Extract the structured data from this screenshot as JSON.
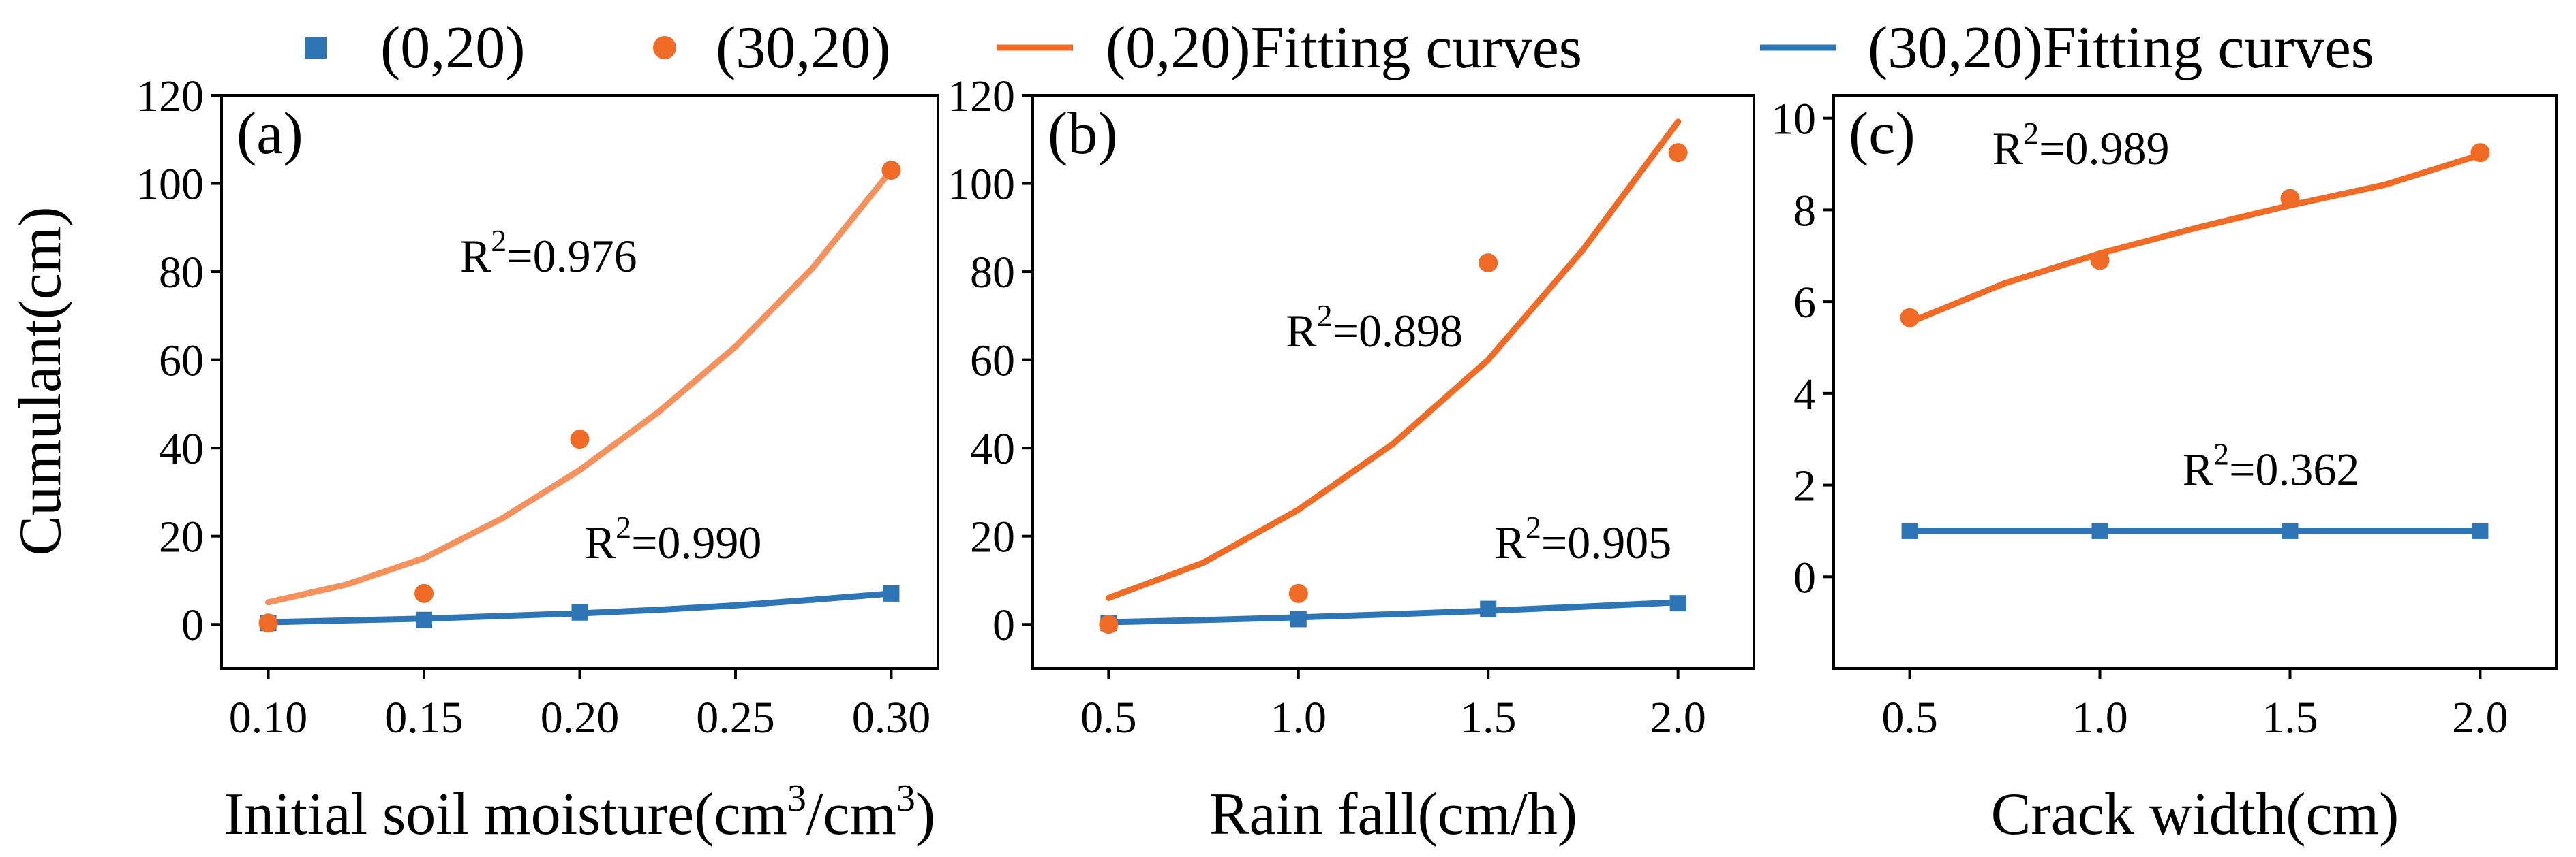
{
  "colors": {
    "series_0_20": "#2e75b6",
    "series_30_20": "#f06b25",
    "fit_0_20_panel_a": "#f5915c",
    "fit_0_20": "#f06b25",
    "fit_30_20": "#2e75b6"
  },
  "legend": {
    "placement": "top",
    "items": [
      {
        "label": "(0,20)",
        "marker": "square",
        "color": "#2e75b6"
      },
      {
        "label": "(30,20)",
        "marker": "circle",
        "color": "#f06b25"
      },
      {
        "label": "(0,20)Fitting curves",
        "marker": "line",
        "color": "#f06b25"
      },
      {
        "label": "(30,20)Fitting curves",
        "marker": "line",
        "color": "#2e75b6"
      }
    ]
  },
  "y_axis_label": "Cumulant(cm)",
  "chart_data": [
    {
      "type": "scatter",
      "panel_label": "(a)",
      "xlabel_parts": [
        "Initial soil moisture(cm",
        "3",
        "/cm",
        "3",
        ")"
      ],
      "xlim": [
        0.085,
        0.315
      ],
      "ylim": [
        -10,
        120
      ],
      "xticks": [
        0.1,
        0.15,
        0.2,
        0.25,
        0.3
      ],
      "xtick_labels": [
        "0.10",
        "0.15",
        "0.20",
        "0.25",
        "0.30"
      ],
      "yticks": [
        0,
        20,
        40,
        60,
        80,
        100,
        120
      ],
      "ytick_labels": [
        "0",
        "20",
        "40",
        "60",
        "80",
        "100",
        "120"
      ],
      "series": [
        {
          "name": "(0,20)",
          "marker": "square",
          "x": [
            0.1,
            0.15,
            0.2,
            0.3
          ],
          "y": [
            0.3,
            1.0,
            2.7,
            7.0
          ],
          "fit": {
            "x": [
              0.1,
              0.125,
              0.15,
              0.175,
              0.2,
              0.225,
              0.25,
              0.275,
              0.3
            ],
            "y": [
              0.5,
              0.9,
              1.3,
              1.9,
              2.5,
              3.3,
              4.3,
              5.6,
              7.0
            ]
          }
        },
        {
          "name": "(30,20)",
          "marker": "circle",
          "x": [
            0.1,
            0.15,
            0.2,
            0.3
          ],
          "y": [
            0.3,
            7.0,
            42.0,
            103.0
          ],
          "fit": {
            "x": [
              0.1,
              0.125,
              0.15,
              0.175,
              0.2,
              0.225,
              0.25,
              0.275,
              0.3
            ],
            "y": [
              5.0,
              9.0,
              15.0,
              24.0,
              35.0,
              48.0,
              63.0,
              81.0,
              103.0
            ]
          }
        }
      ],
      "annotations": [
        {
          "r2_prefix": "R",
          "r2_exp": "2",
          "r2_value": "=0.976",
          "x": 0.19,
          "y": 80
        },
        {
          "r2_prefix": "R",
          "r2_exp": "2",
          "r2_value": "=0.990",
          "x": 0.23,
          "y": 15
        }
      ]
    },
    {
      "type": "scatter",
      "panel_label": "(b)",
      "xlabel_parts": [
        "Rain fall(cm/h)"
      ],
      "xlim": [
        0.3,
        2.2
      ],
      "ylim": [
        -10,
        120
      ],
      "xticks": [
        0.5,
        1.0,
        1.5,
        2.0
      ],
      "xtick_labels": [
        "0.5",
        "1.0",
        "1.5",
        "2.0"
      ],
      "yticks": [
        0,
        20,
        40,
        60,
        80,
        100,
        120
      ],
      "ytick_labels": [
        "0",
        "20",
        "40",
        "60",
        "80",
        "100",
        "120"
      ],
      "series": [
        {
          "name": "(0,20)",
          "marker": "square",
          "x": [
            0.5,
            1.0,
            1.5,
            2.0
          ],
          "y": [
            0.3,
            1.2,
            3.5,
            4.8
          ],
          "fit": {
            "x": [
              0.5,
              0.75,
              1.0,
              1.25,
              1.5,
              1.75,
              2.0
            ],
            "y": [
              0.5,
              1.0,
              1.6,
              2.3,
              3.1,
              4.0,
              5.0
            ]
          }
        },
        {
          "name": "(30,20)",
          "marker": "circle",
          "x": [
            0.5,
            1.0,
            1.5,
            2.0
          ],
          "y": [
            0.0,
            7.0,
            82.0,
            107.0
          ],
          "fit": {
            "x": [
              0.5,
              0.75,
              1.0,
              1.25,
              1.5,
              1.75,
              2.0
            ],
            "y": [
              6.0,
              14.0,
              26.0,
              41.0,
              60.0,
              85.0,
              114.0
            ]
          }
        }
      ],
      "annotations": [
        {
          "r2_prefix": "R",
          "r2_exp": "2",
          "r2_value": "=0.898",
          "x": 1.2,
          "y": 63
        },
        {
          "r2_prefix": "R",
          "r2_exp": "2",
          "r2_value": "=0.905",
          "x": 1.75,
          "y": 15
        }
      ]
    },
    {
      "type": "scatter",
      "panel_label": "(c)",
      "xlabel_parts": [
        "Crack width(cm)"
      ],
      "xlim": [
        0.3,
        2.2
      ],
      "ylim": [
        -2,
        10.5
      ],
      "xticks": [
        0.5,
        1.0,
        1.5,
        2.0
      ],
      "xtick_labels": [
        "0.5",
        "1.0",
        "1.5",
        "2.0"
      ],
      "yticks": [
        0,
        2,
        4,
        6,
        8,
        10
      ],
      "ytick_labels": [
        "0",
        "2",
        "4",
        "6",
        "8",
        "10"
      ],
      "series": [
        {
          "name": "(0,20)",
          "marker": "square",
          "x": [
            0.5,
            1.0,
            1.5,
            2.0
          ],
          "y": [
            1.0,
            1.0,
            1.0,
            1.0
          ],
          "fit": {
            "x": [
              0.5,
              2.0
            ],
            "y": [
              1.0,
              1.0
            ]
          }
        },
        {
          "name": "(30,20)",
          "marker": "circle",
          "x": [
            0.5,
            1.0,
            1.5,
            2.0
          ],
          "y": [
            5.65,
            6.9,
            8.25,
            9.25
          ],
          "fit": {
            "x": [
              0.5,
              0.75,
              1.0,
              1.25,
              1.5,
              1.75,
              2.0
            ],
            "y": [
              5.55,
              6.4,
              7.05,
              7.6,
              8.1,
              8.55,
              9.2
            ]
          }
        }
      ],
      "annotations": [
        {
          "r2_prefix": "R",
          "r2_exp": "2",
          "r2_value": "=0.989",
          "x": 0.95,
          "y": 9.0
        },
        {
          "r2_prefix": "R",
          "r2_exp": "2",
          "r2_value": "=0.362",
          "x": 1.45,
          "y": 2.0
        }
      ]
    }
  ]
}
